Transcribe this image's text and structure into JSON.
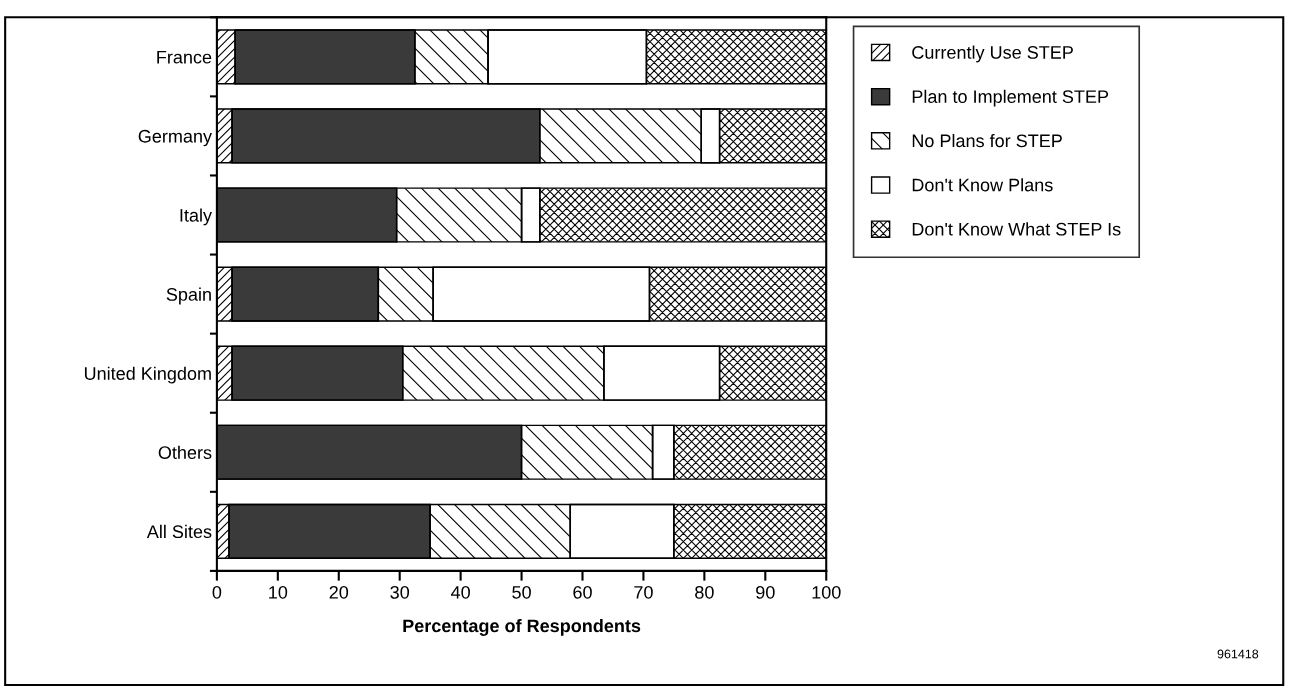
{
  "chart_data": {
    "type": "bar",
    "orientation": "horizontal",
    "stacked": true,
    "categories": [
      "France",
      "Germany",
      "Italy",
      "Spain",
      "United Kingdom",
      "Others",
      "All Sites"
    ],
    "series": [
      {
        "name": "Currently Use STEP",
        "color": "#ffffff",
        "values": [
          3,
          2.5,
          0,
          2.5,
          2.5,
          0,
          2
        ]
      },
      {
        "name": "Plan to Implement STEP",
        "color": "#3a3a3a",
        "values": [
          29.5,
          50.5,
          29.5,
          24,
          28,
          50,
          33
        ]
      },
      {
        "name": "No Plans for STEP",
        "color": "#ffffff",
        "values": [
          12,
          26.5,
          20.5,
          9,
          33,
          21.5,
          23
        ]
      },
      {
        "name": "Don't Know Plans",
        "color": "#ffffff",
        "values": [
          26,
          3,
          3,
          35.5,
          19,
          3.5,
          17
        ]
      },
      {
        "name": "Don't Know What STEP Is",
        "color": "#ffffff",
        "values": [
          29.5,
          17.5,
          47,
          29,
          17.5,
          25,
          25
        ]
      }
    ],
    "xlabel": "Percentage of Respondents",
    "xlim": [
      0,
      100
    ],
    "xticks": [
      0,
      10,
      20,
      30,
      40,
      50,
      60,
      70,
      80,
      90,
      100
    ],
    "legend": "top right",
    "grid": false,
    "annotations": [
      "961418"
    ]
  }
}
